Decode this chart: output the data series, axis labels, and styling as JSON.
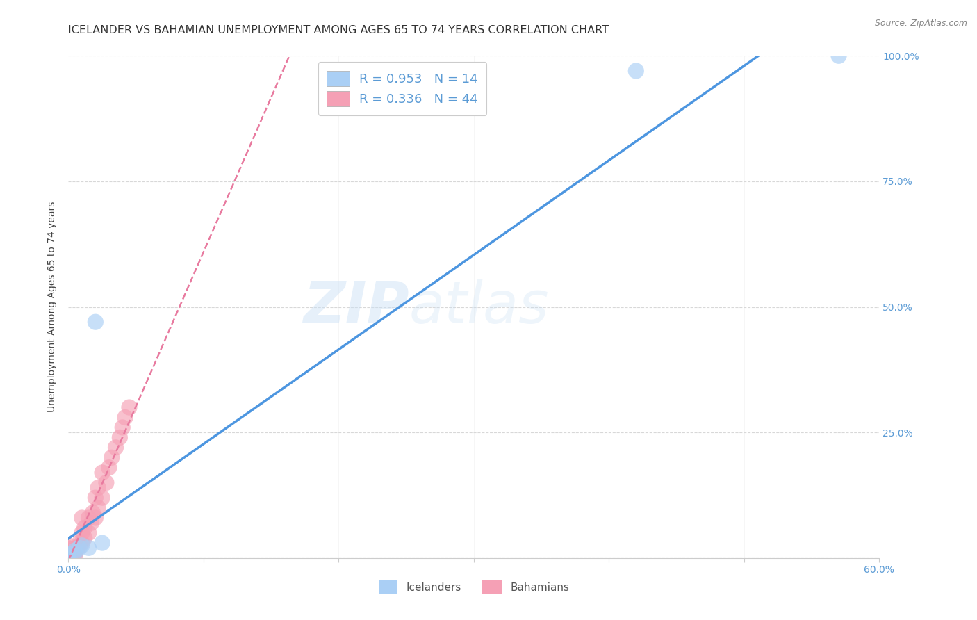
{
  "title": "ICELANDER VS BAHAMIAN UNEMPLOYMENT AMONG AGES 65 TO 74 YEARS CORRELATION CHART",
  "source": "Source: ZipAtlas.com",
  "ylabel": "Unemployment Among Ages 65 to 74 years",
  "xlim": [
    0.0,
    0.6
  ],
  "ylim": [
    0.0,
    1.0
  ],
  "xticks": [
    0.0,
    0.1,
    0.2,
    0.3,
    0.4,
    0.5,
    0.6
  ],
  "xticklabels": [
    "0.0%",
    "",
    "",
    "",
    "",
    "",
    "60.0%"
  ],
  "yticks": [
    0.0,
    0.25,
    0.5,
    0.75,
    1.0
  ],
  "yticklabels": [
    "",
    "25.0%",
    "50.0%",
    "75.0%",
    "100.0%"
  ],
  "watermark_zip": "ZIP",
  "watermark_atlas": "atlas",
  "iceland_r": 0.953,
  "iceland_n": 14,
  "bahamas_r": 0.336,
  "bahamas_n": 44,
  "icelander_color": "#aacff5",
  "bahamian_color": "#f5a0b5",
  "line_iceland_color": "#4d96e0",
  "line_bahamas_color": "#e87a9f",
  "icelanders_x": [
    0.0,
    0.0,
    0.0,
    0.0,
    0.0,
    0.005,
    0.005,
    0.008,
    0.01,
    0.015,
    0.02,
    0.025,
    0.42,
    0.57
  ],
  "icelanders_y": [
    0.0,
    0.0,
    0.0,
    0.005,
    0.008,
    0.01,
    0.015,
    0.02,
    0.025,
    0.02,
    0.47,
    0.03,
    0.97,
    1.0
  ],
  "bahamians_x": [
    0.0,
    0.0,
    0.0,
    0.0,
    0.0,
    0.0,
    0.0,
    0.0,
    0.0,
    0.0,
    0.0,
    0.0,
    0.0,
    0.0,
    0.0,
    0.005,
    0.005,
    0.005,
    0.007,
    0.008,
    0.008,
    0.01,
    0.01,
    0.01,
    0.012,
    0.012,
    0.015,
    0.015,
    0.017,
    0.018,
    0.02,
    0.02,
    0.022,
    0.022,
    0.025,
    0.025,
    0.028,
    0.03,
    0.032,
    0.035,
    0.038,
    0.04,
    0.042,
    0.045
  ],
  "bahamians_y": [
    0.0,
    0.0,
    0.0,
    0.0,
    0.0,
    0.0,
    0.005,
    0.005,
    0.008,
    0.01,
    0.012,
    0.015,
    0.018,
    0.02,
    0.025,
    0.005,
    0.01,
    0.015,
    0.02,
    0.025,
    0.03,
    0.03,
    0.05,
    0.08,
    0.04,
    0.06,
    0.05,
    0.08,
    0.07,
    0.09,
    0.08,
    0.12,
    0.1,
    0.14,
    0.12,
    0.17,
    0.15,
    0.18,
    0.2,
    0.22,
    0.24,
    0.26,
    0.28,
    0.3
  ],
  "grid_color": "#d8d8d8",
  "axis_color": "#cccccc",
  "label_color": "#5b9bd5",
  "background_color": "#ffffff",
  "title_fontsize": 11.5,
  "axis_label_fontsize": 10,
  "tick_fontsize": 10,
  "legend_fontsize": 13
}
